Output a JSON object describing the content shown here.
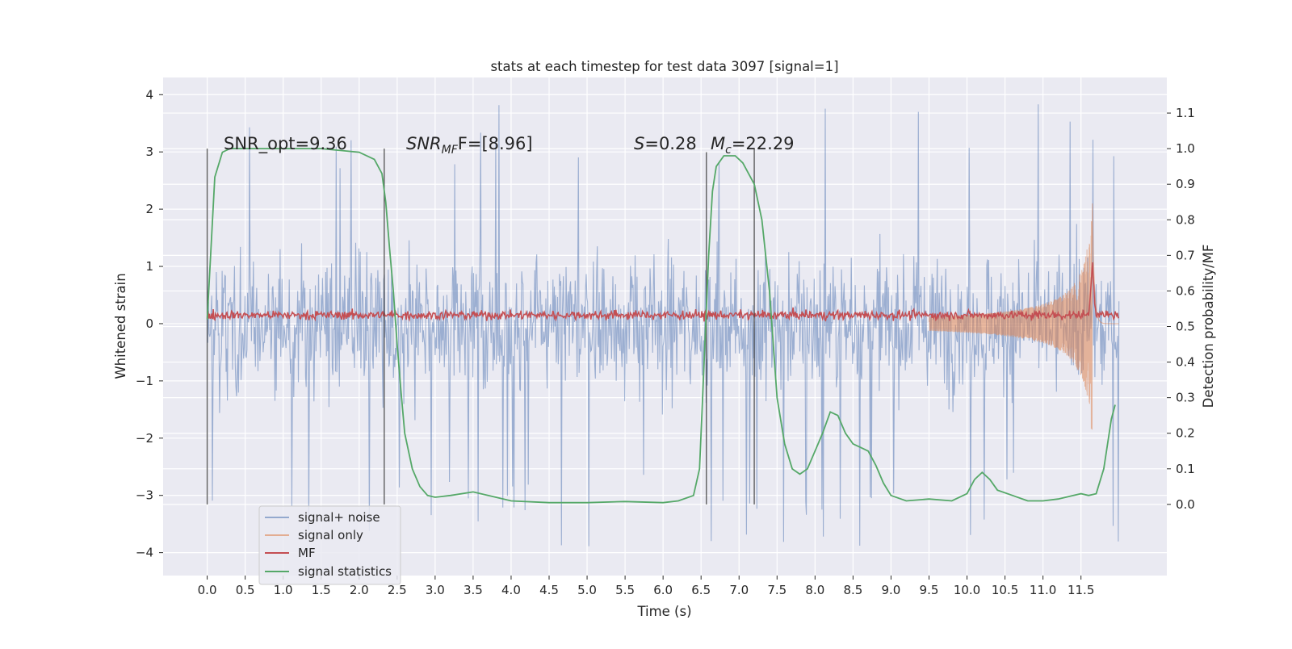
{
  "chart_data": {
    "type": "line",
    "title": "stats at each timestep for test data 3097 [signal=1]",
    "xlabel": "Time (s)",
    "ylabel": "Whitened strain",
    "y2label": "Detection probability/MF",
    "xlim": [
      -0.58,
      12.63
    ],
    "ylim": [
      -4.4,
      4.3
    ],
    "y2lim": [
      -0.2,
      1.2
    ],
    "grid": true,
    "legend_placement": "lower-left",
    "x_ticks": [
      "0.0",
      "0.5",
      "1.0",
      "1.5",
      "2.0",
      "2.5",
      "3.0",
      "3.5",
      "4.0",
      "4.5",
      "5.0",
      "5.5",
      "6.0",
      "6.5",
      "7.0",
      "7.5",
      "8.0",
      "8.5",
      "9.0",
      "9.5",
      "10.0",
      "10.5",
      "11.0",
      "11.5"
    ],
    "y_ticks": [
      "−4",
      "−3",
      "−2",
      "−1",
      "0",
      "1",
      "2",
      "3",
      "4"
    ],
    "y2_ticks": [
      "0.0",
      "0.1",
      "0.2",
      "0.3",
      "0.4",
      "0.5",
      "0.6",
      "0.7",
      "0.8",
      "0.9",
      "1.0",
      "1.1"
    ],
    "annotations": {
      "snr_opt": "SNR_opt=9.36",
      "snr_mf_main": "SNR",
      "snr_mf_sub": "MF",
      "snr_mf_tail": "F=[8.96]",
      "s_main": "S",
      "s_tail": "=0.28",
      "mc_main": "M",
      "mc_sub": "c",
      "mc_tail": "=22.29"
    },
    "event_lines": [
      {
        "x": 0.0,
        "y2_top": 1.0
      },
      {
        "x": 2.33,
        "y2_top": 1.0
      },
      {
        "x": 6.57,
        "y2_top": 0.99
      },
      {
        "x": 7.2,
        "y2_top": 1.0
      }
    ],
    "series": [
      {
        "name": "signal+ noise",
        "color": "#4c72b0",
        "axis": "left",
        "kind": "noise",
        "x_range": [
          0.0,
          12.0
        ],
        "typical_amplitude": 1.8,
        "peak_amplitude": 3.9
      },
      {
        "name": "signal only",
        "color": "#dd8452",
        "axis": "left",
        "kind": "chirp",
        "x_range": [
          0.0,
          12.0
        ],
        "merger_time": 11.65,
        "peak_amplitude": 2.1
      },
      {
        "name": "MF",
        "color": "#c44e52",
        "axis": "left",
        "kind": "mf",
        "x_range": [
          0.0,
          12.0
        ],
        "baseline": 0.15,
        "peak_value": 1.0,
        "peak_time": 11.65
      },
      {
        "name": "signal statistics",
        "color": "#55a868",
        "axis": "right",
        "points": [
          [
            0.0,
            0.52
          ],
          [
            0.05,
            0.72
          ],
          [
            0.1,
            0.92
          ],
          [
            0.2,
            0.99
          ],
          [
            0.3,
            1.0
          ],
          [
            0.6,
            1.0
          ],
          [
            1.0,
            1.0
          ],
          [
            1.5,
            1.0
          ],
          [
            2.0,
            0.99
          ],
          [
            2.2,
            0.97
          ],
          [
            2.3,
            0.93
          ],
          [
            2.35,
            0.85
          ],
          [
            2.4,
            0.72
          ],
          [
            2.45,
            0.6
          ],
          [
            2.5,
            0.45
          ],
          [
            2.55,
            0.32
          ],
          [
            2.6,
            0.2
          ],
          [
            2.7,
            0.1
          ],
          [
            2.8,
            0.05
          ],
          [
            2.9,
            0.025
          ],
          [
            3.0,
            0.02
          ],
          [
            3.2,
            0.025
          ],
          [
            3.5,
            0.035
          ],
          [
            3.8,
            0.02
          ],
          [
            4.0,
            0.01
          ],
          [
            4.5,
            0.005
          ],
          [
            5.0,
            0.005
          ],
          [
            5.5,
            0.008
          ],
          [
            6.0,
            0.005
          ],
          [
            6.2,
            0.01
          ],
          [
            6.4,
            0.025
          ],
          [
            6.48,
            0.1
          ],
          [
            6.52,
            0.3
          ],
          [
            6.56,
            0.5
          ],
          [
            6.6,
            0.7
          ],
          [
            6.65,
            0.88
          ],
          [
            6.7,
            0.95
          ],
          [
            6.8,
            0.98
          ],
          [
            6.95,
            0.98
          ],
          [
            7.05,
            0.96
          ],
          [
            7.2,
            0.9
          ],
          [
            7.3,
            0.8
          ],
          [
            7.4,
            0.6
          ],
          [
            7.45,
            0.45
          ],
          [
            7.5,
            0.3
          ],
          [
            7.6,
            0.17
          ],
          [
            7.7,
            0.1
          ],
          [
            7.8,
            0.085
          ],
          [
            7.9,
            0.1
          ],
          [
            8.0,
            0.15
          ],
          [
            8.1,
            0.2
          ],
          [
            8.2,
            0.26
          ],
          [
            8.3,
            0.25
          ],
          [
            8.4,
            0.2
          ],
          [
            8.5,
            0.17
          ],
          [
            8.6,
            0.16
          ],
          [
            8.7,
            0.15
          ],
          [
            8.8,
            0.11
          ],
          [
            8.9,
            0.06
          ],
          [
            9.0,
            0.025
          ],
          [
            9.2,
            0.01
          ],
          [
            9.5,
            0.015
          ],
          [
            9.8,
            0.01
          ],
          [
            10.0,
            0.03
          ],
          [
            10.1,
            0.07
          ],
          [
            10.2,
            0.09
          ],
          [
            10.3,
            0.07
          ],
          [
            10.4,
            0.04
          ],
          [
            10.6,
            0.025
          ],
          [
            10.8,
            0.01
          ],
          [
            11.0,
            0.01
          ],
          [
            11.2,
            0.015
          ],
          [
            11.4,
            0.025
          ],
          [
            11.5,
            0.03
          ],
          [
            11.6,
            0.025
          ],
          [
            11.7,
            0.03
          ],
          [
            11.8,
            0.1
          ],
          [
            11.9,
            0.24
          ],
          [
            11.95,
            0.28
          ]
        ]
      }
    ]
  }
}
